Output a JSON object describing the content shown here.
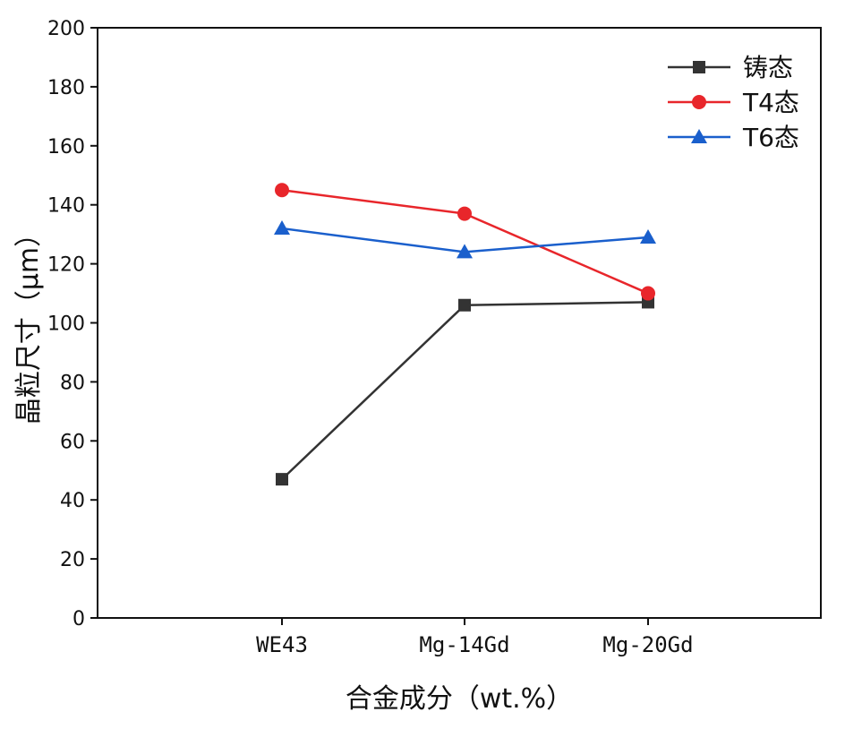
{
  "chart_data": {
    "type": "line",
    "title": "",
    "xlabel": "合金成分（wt.%）",
    "ylabel": "晶粒尺寸（μm）",
    "categories": [
      "WE43",
      "Mg-14Gd",
      "Mg-20Gd"
    ],
    "ylim": [
      0,
      200
    ],
    "yticks": [
      0,
      20,
      40,
      60,
      80,
      100,
      120,
      140,
      160,
      180,
      200
    ],
    "grid": false,
    "legend_position": "top-right",
    "series": [
      {
        "name": "铸态",
        "color": "#333333",
        "marker": "square",
        "values": [
          47,
          106,
          107
        ]
      },
      {
        "name": "T4态",
        "color": "#e8262b",
        "marker": "circle",
        "values": [
          145,
          137,
          110
        ]
      },
      {
        "name": "T6态",
        "color": "#1a5fcc",
        "marker": "triangle",
        "values": [
          132,
          124,
          129
        ]
      }
    ]
  }
}
